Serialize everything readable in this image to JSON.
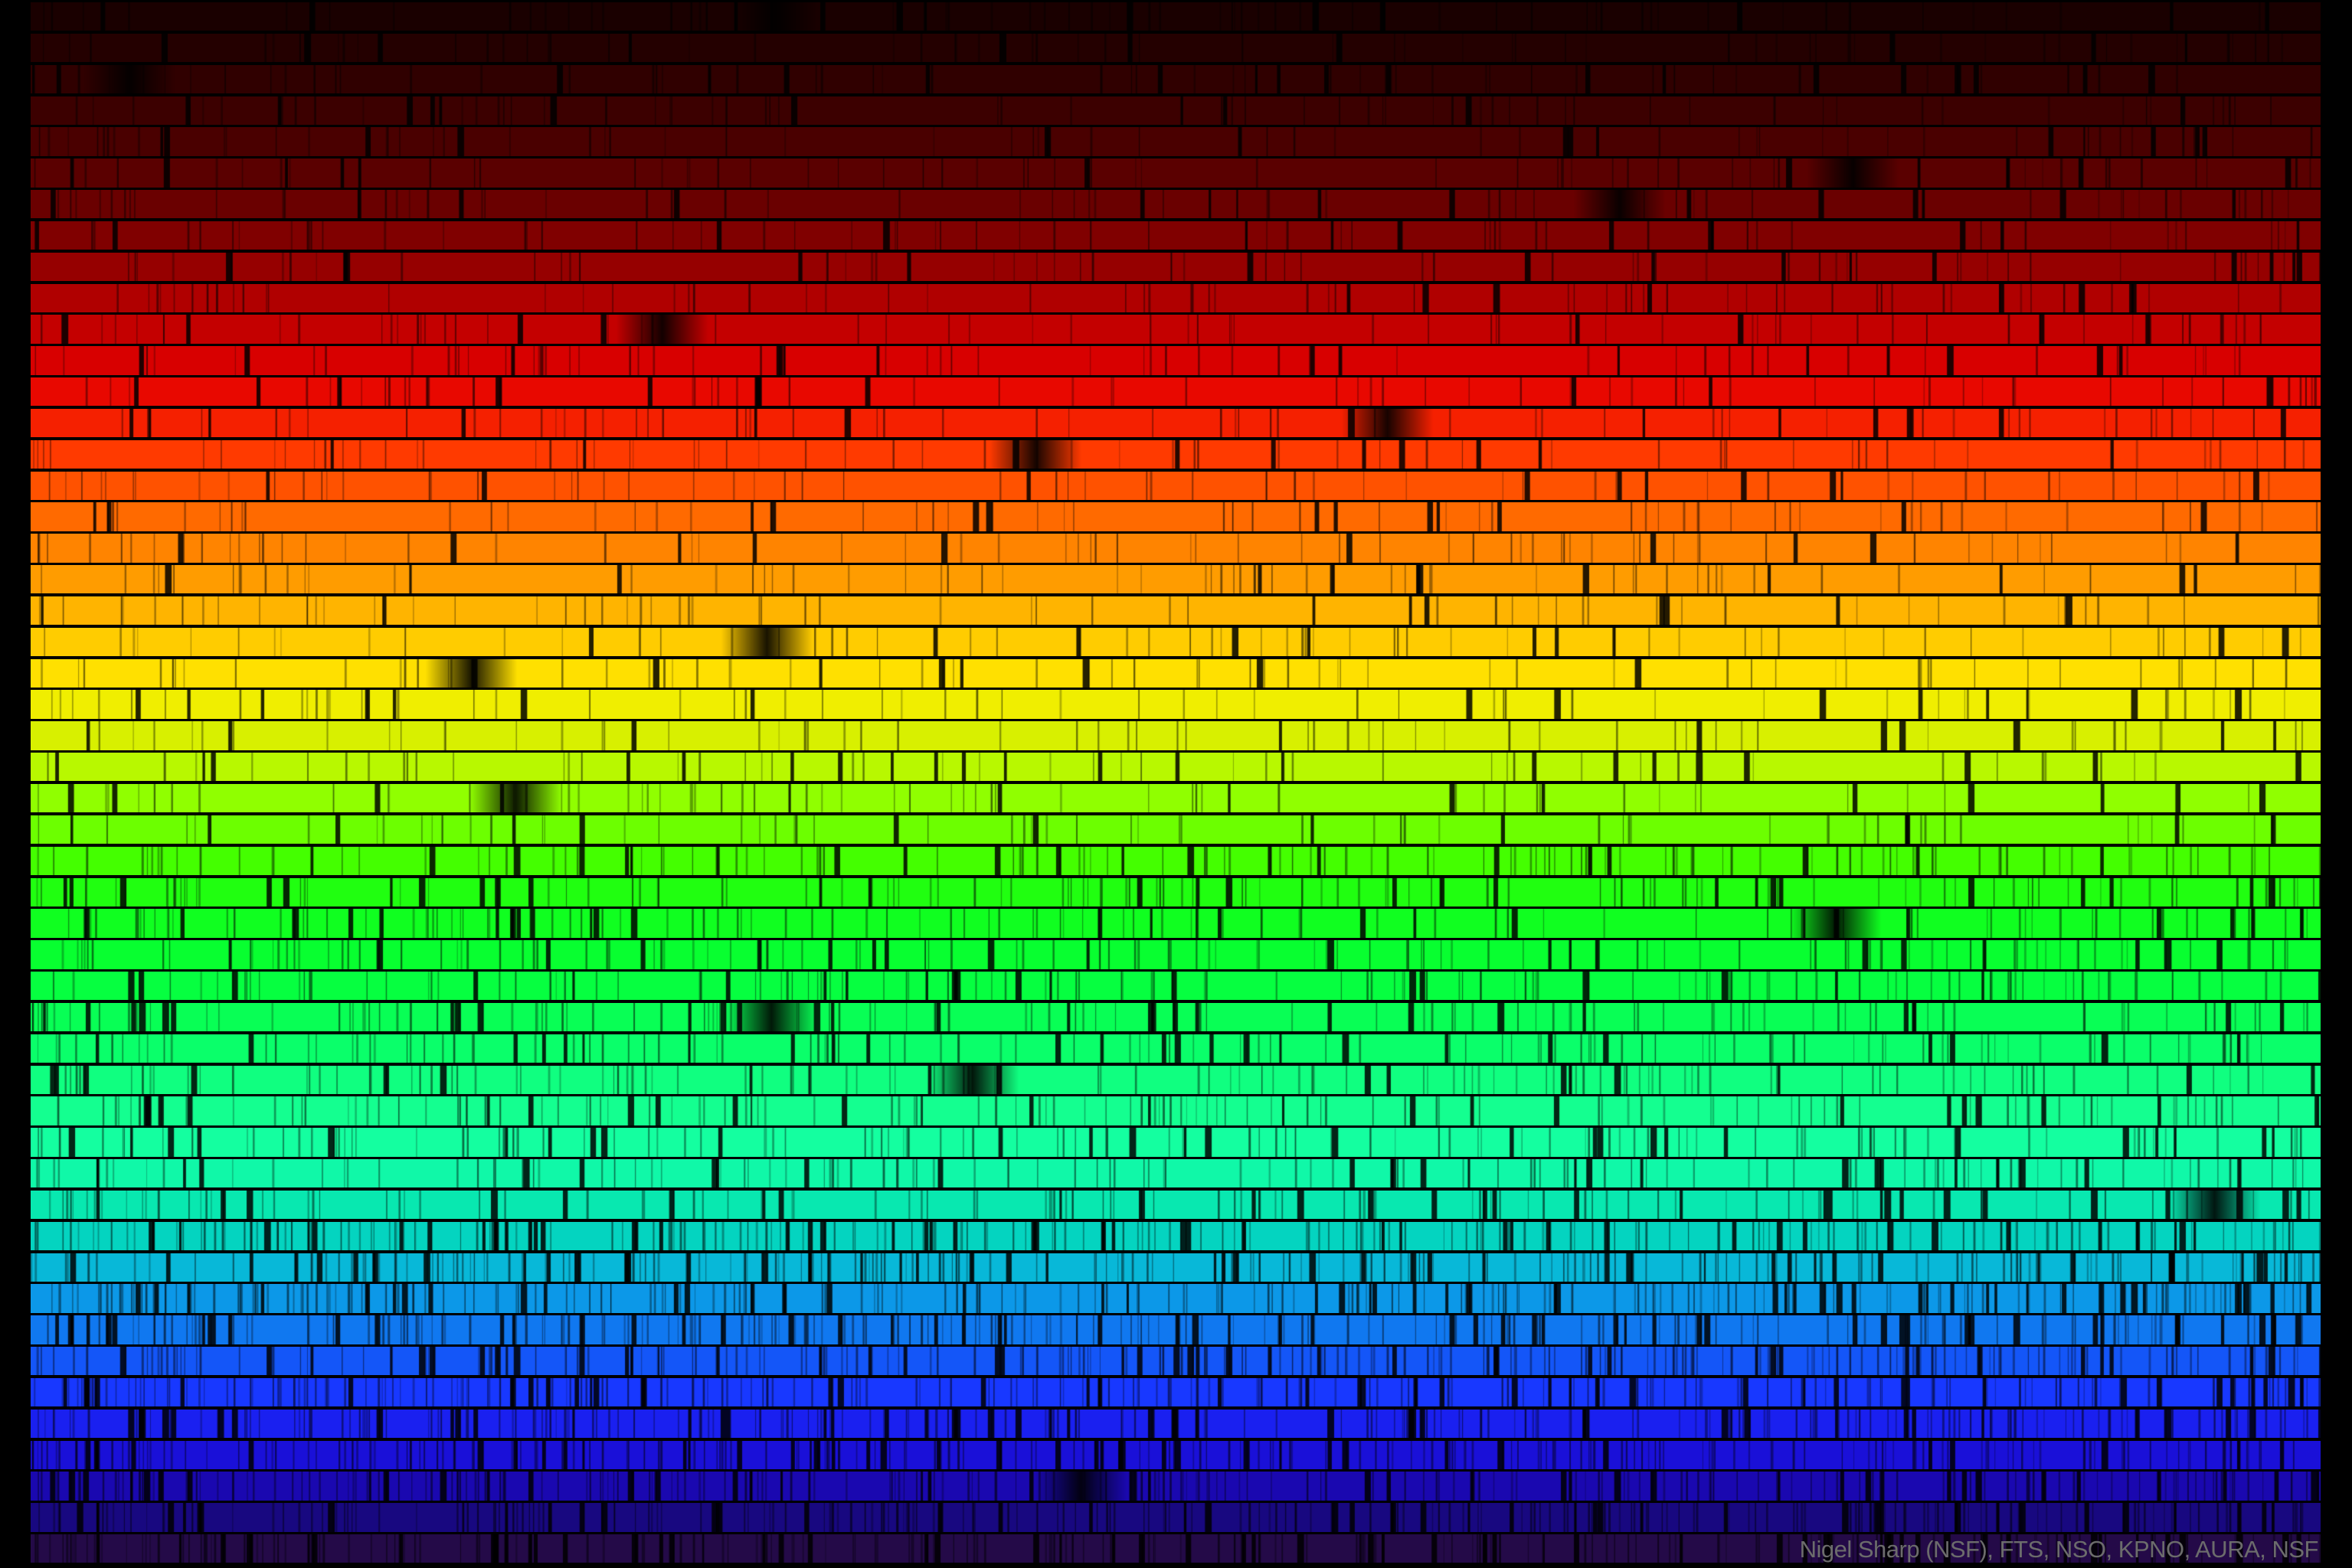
{
  "image": {
    "subject": "solar-spectrum",
    "credit": "Nigel Sharp (NSF), FTS, NSO, KPNO, AURA, NSF",
    "strip_colors": [
      "#1a0000",
      "#240000",
      "#300000",
      "#3c0000",
      "#4a0000",
      "#5a0000",
      "#6a0000",
      "#800000",
      "#960000",
      "#b00000",
      "#c40000",
      "#d80000",
      "#e80800",
      "#f52000",
      "#ff3a00",
      "#ff5200",
      "#ff6a00",
      "#ff8400",
      "#ff9c00",
      "#ffb400",
      "#ffcc00",
      "#ffe000",
      "#f0ee00",
      "#d8f000",
      "#b8f800",
      "#90ff00",
      "#6cff00",
      "#44ff00",
      "#20ff10",
      "#10ff20",
      "#08ff30",
      "#06ff40",
      "#08ff55",
      "#0aff6a",
      "#10ff80",
      "#14ff90",
      "#14ffa0",
      "#10f8a8",
      "#08e8b0",
      "#04d4c0",
      "#08b8d8",
      "#0c98e8",
      "#1078f0",
      "#1456f8",
      "#1838ff",
      "#1a20f0",
      "#1a10d8",
      "#1a08b0",
      "#180880",
      "#240a48"
    ]
  }
}
